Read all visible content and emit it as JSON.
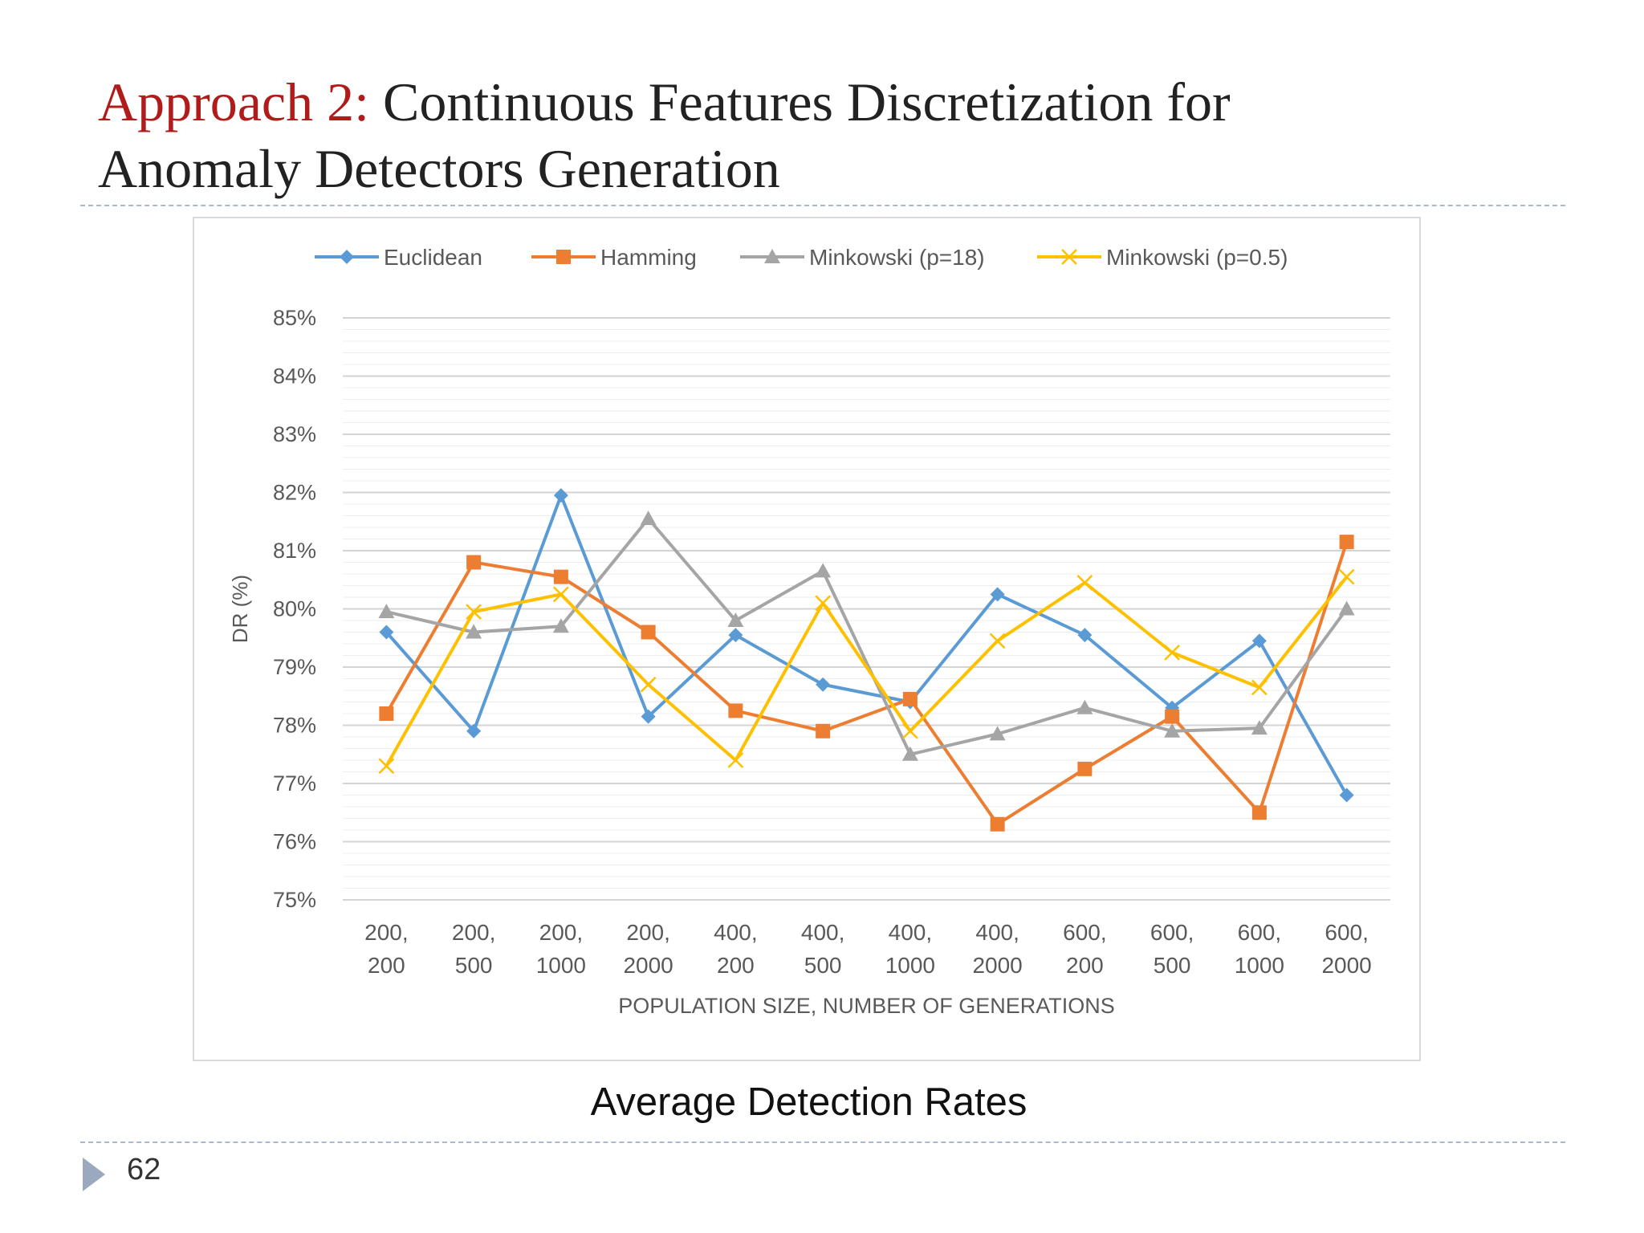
{
  "slide": {
    "title_accent": "Approach 2:",
    "title_line1_rest": "Continuous Features Discretization for",
    "title_line2": "Anomaly Detectors Generation",
    "caption": "Average Detection Rates",
    "page_number": "62"
  },
  "chart_data": {
    "type": "line",
    "title": "",
    "xlabel": "POPULATION SIZE, NUMBER OF GENERATIONS",
    "ylabel": "DR (%)",
    "ylim": [
      75,
      85
    ],
    "y_ticks": [
      "75%",
      "76%",
      "77%",
      "78%",
      "79%",
      "80%",
      "81%",
      "82%",
      "83%",
      "84%",
      "85%"
    ],
    "grid": true,
    "minor_gridlines_per_major": 5,
    "legend_position": "top",
    "categories": [
      [
        "200,",
        "200"
      ],
      [
        "200,",
        "500"
      ],
      [
        "200,",
        "1000"
      ],
      [
        "200,",
        "2000"
      ],
      [
        "400,",
        "200"
      ],
      [
        "400,",
        "500"
      ],
      [
        "400,",
        "1000"
      ],
      [
        "400,",
        "2000"
      ],
      [
        "600,",
        "200"
      ],
      [
        "600,",
        "500"
      ],
      [
        "600,",
        "1000"
      ],
      [
        "600,",
        "2000"
      ]
    ],
    "series": [
      {
        "name": "Euclidean",
        "color": "#5b9bd5",
        "marker": "diamond",
        "values": [
          79.6,
          77.9,
          81.95,
          78.15,
          79.55,
          78.7,
          78.4,
          80.25,
          79.55,
          78.3,
          79.45,
          76.8
        ]
      },
      {
        "name": "Hamming",
        "color": "#ed7d31",
        "marker": "square",
        "values": [
          78.2,
          80.8,
          80.55,
          79.6,
          78.25,
          77.9,
          78.45,
          76.3,
          77.25,
          78.15,
          76.5,
          81.15
        ]
      },
      {
        "name": "Minkowski (p=18)",
        "color": "#a5a5a5",
        "marker": "triangle",
        "values": [
          79.95,
          79.6,
          79.7,
          81.55,
          79.8,
          80.65,
          77.5,
          77.85,
          78.3,
          77.9,
          77.95,
          80.0
        ]
      },
      {
        "name": "Minkowski (p=0.5)",
        "color": "#ffc000",
        "marker": "x",
        "values": [
          77.3,
          79.95,
          80.25,
          78.7,
          77.4,
          80.1,
          77.9,
          79.45,
          80.45,
          79.25,
          78.65,
          80.55
        ]
      }
    ]
  }
}
